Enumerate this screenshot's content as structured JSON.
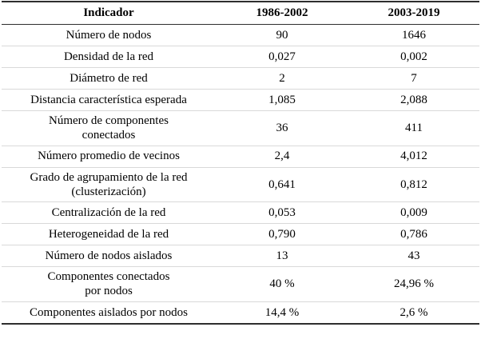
{
  "table": {
    "headers": [
      "Indicador",
      "1986-2002",
      "2003-2019"
    ],
    "rows": [
      {
        "indicator": "Número de nodos",
        "v1": "90",
        "v2": "1646"
      },
      {
        "indicator": "Densidad de la red",
        "v1": "0,027",
        "v2": "0,002"
      },
      {
        "indicator": "Diámetro de red",
        "v1": "2",
        "v2": "7"
      },
      {
        "indicator": "Distancia característica esperada",
        "v1": "1,085",
        "v2": "2,088"
      },
      {
        "indicator": "Número de componentes\nconectados",
        "v1": "36",
        "v2": "411"
      },
      {
        "indicator": "Número promedio de vecinos",
        "v1": "2,4",
        "v2": "4,012"
      },
      {
        "indicator": "Grado de agrupamiento de la red\n(clusterización)",
        "v1": "0,641",
        "v2": "0,812"
      },
      {
        "indicator": "Centralización de la red",
        "v1": "0,053",
        "v2": "0,009"
      },
      {
        "indicator": "Heterogeneidad de la red",
        "v1": "0,790",
        "v2": "0,786"
      },
      {
        "indicator": "Número de nodos aislados",
        "v1": "13",
        "v2": "43"
      },
      {
        "indicator": "Componentes conectados\npor nodos",
        "v1": "40 %",
        "v2": "24,96 %"
      },
      {
        "indicator": "Componentes aislados por nodos",
        "v1": "14,4 %",
        "v2": "2,6 %"
      }
    ]
  }
}
